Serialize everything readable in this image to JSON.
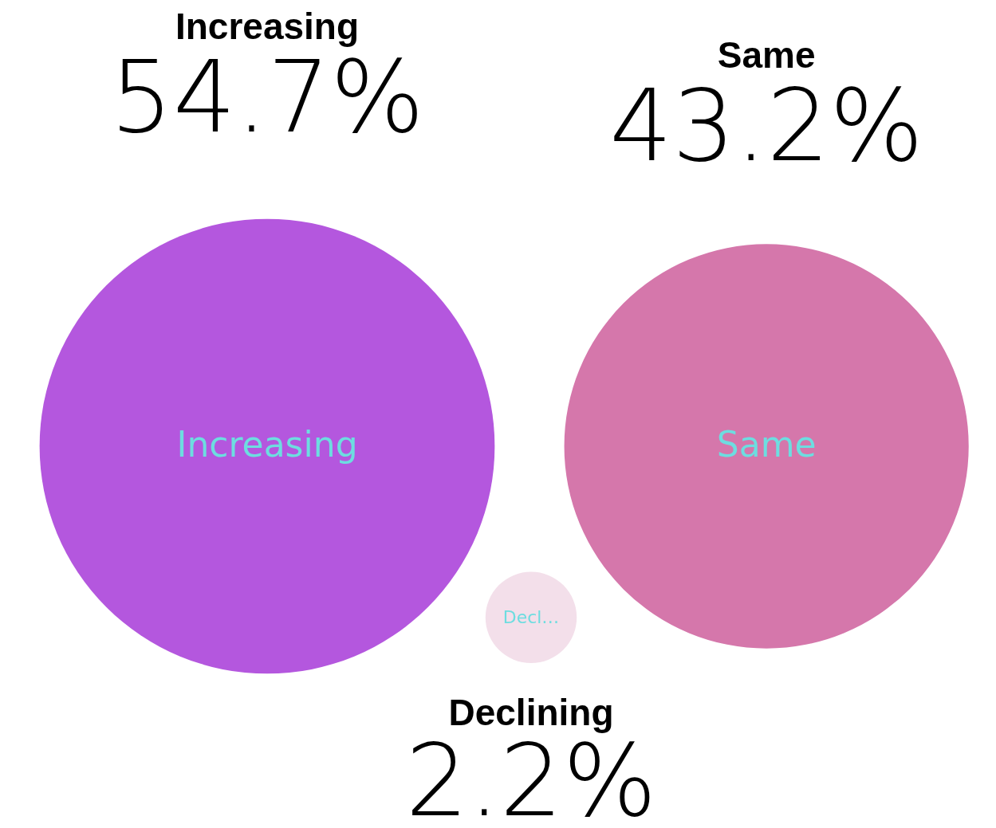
{
  "chart_data": {
    "type": "other",
    "categories": [
      "Increasing",
      "Same",
      "Declining"
    ],
    "values": [
      54.7,
      43.2,
      2.2
    ],
    "colors": [
      "#b457de",
      "#d577ab",
      "#f3dfea"
    ],
    "value_labels": [
      "54.7%",
      "43.2%",
      "2.2%"
    ],
    "annotations": [
      "Increasing",
      "Same",
      "Decl…"
    ]
  }
}
